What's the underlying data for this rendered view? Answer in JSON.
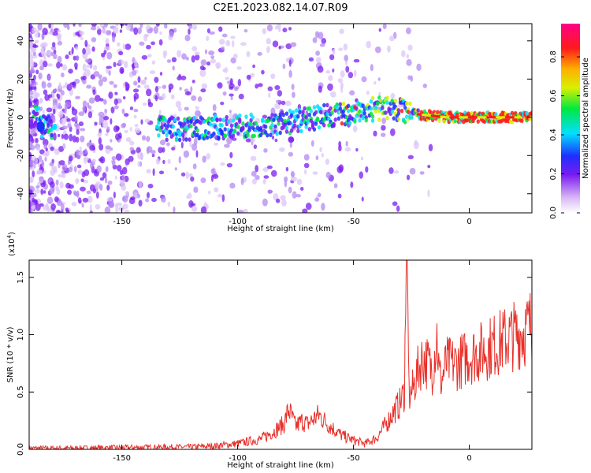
{
  "chart_data": [
    {
      "type": "heatmap",
      "title": "C2E1.2023.082.14.07.R09",
      "xlabel": "Height of straight line (km)",
      "ylabel": "Frequency (Hz)",
      "xlim": [
        -190,
        27
      ],
      "ylim": [
        -50,
        49
      ],
      "x_ticks": [
        -150,
        -100,
        -50,
        0
      ],
      "y_ticks": [
        -40,
        -20,
        0,
        20,
        40
      ],
      "colorbar": {
        "label": "Normalized spectral amplitude",
        "range": [
          0,
          0.97
        ],
        "ticks": [
          0.0,
          0.2,
          0.4,
          0.6,
          0.8
        ],
        "colormap": "white-purple-blue-cyan-green-yellow-orange-red-magenta"
      },
      "ridge": {
        "description_points": [
          {
            "x": -185,
            "y": -5
          },
          {
            "x": -130,
            "y": -6
          },
          {
            "x": -100,
            "y": -5
          },
          {
            "x": -75,
            "y": -2
          },
          {
            "x": -50,
            "y": 3
          },
          {
            "x": -35,
            "y": 5
          },
          {
            "x": -25,
            "y": 2
          },
          {
            "x": -10,
            "y": 0
          },
          {
            "x": 0,
            "y": 0
          },
          {
            "x": 27,
            "y": 0
          }
        ],
        "peak_amplitude_region": [
          -22,
          20
        ]
      }
    },
    {
      "type": "line",
      "title": "",
      "xlabel": "Height of straight line (km)",
      "ylabel": "SNR (10 * v/v)",
      "y_scale_label": "(x10",
      "y_scale_exp": "4",
      "y_scale_close": ")",
      "xlim": [
        -190,
        27
      ],
      "ylim": [
        0,
        1.65
      ],
      "x_ticks": [
        -150,
        -100,
        -50,
        0
      ],
      "y_ticks": [
        0.0,
        0.5,
        1.0,
        1.5
      ],
      "series": [
        {
          "color": "#e8302a",
          "x": [
            -190,
            -170,
            -150,
            -130,
            -120,
            -110,
            -100,
            -95,
            -90,
            -85,
            -80,
            -78,
            -75,
            -72,
            -70,
            -65,
            -60,
            -55,
            -50,
            -45,
            -40,
            -35,
            -32,
            -30,
            -28,
            -27,
            -26,
            -24,
            -22,
            -20,
            -18,
            -16,
            -14,
            -13,
            -12,
            -10,
            -5,
            0,
            5,
            10,
            15,
            20,
            25,
            27
          ],
          "values": [
            0.01,
            0.01,
            0.015,
            0.02,
            0.02,
            0.03,
            0.05,
            0.07,
            0.09,
            0.15,
            0.22,
            0.35,
            0.2,
            0.25,
            0.22,
            0.3,
            0.2,
            0.12,
            0.08,
            0.05,
            0.1,
            0.25,
            0.35,
            0.4,
            0.5,
            1.65,
            0.45,
            0.55,
            0.7,
            0.8,
            0.75,
            0.7,
            1.0,
            0.65,
            0.6,
            0.75,
            0.75,
            0.82,
            0.85,
            0.9,
            0.95,
            1.0,
            1.05,
            1.1
          ]
        }
      ]
    }
  ]
}
